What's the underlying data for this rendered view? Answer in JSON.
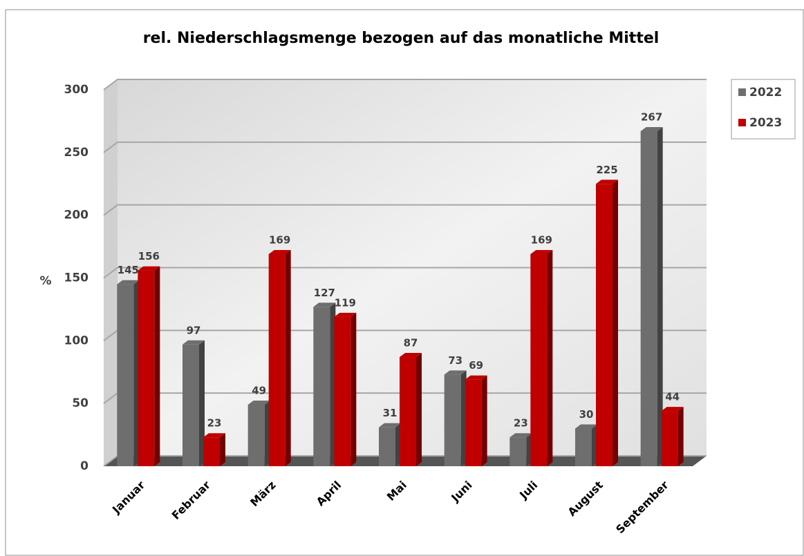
{
  "chart_data": {
    "type": "bar",
    "title": "rel. Niederschlagsmenge bezogen auf das monatliche Mittel",
    "y_label": "%",
    "categories": [
      "Januar",
      "Februar",
      "März",
      "April",
      "Mai",
      "Juni",
      "Juli",
      "August",
      "September"
    ],
    "series": [
      {
        "name": "2022",
        "color": "#6e6e6e",
        "values": [
          145,
          97,
          49,
          127,
          31,
          73,
          23,
          30,
          267
        ]
      },
      {
        "name": "2023",
        "color": "#c00000",
        "values": [
          156,
          23,
          169,
          119,
          87,
          69,
          169,
          225,
          44
        ]
      }
    ],
    "ylim": [
      0,
      300
    ],
    "yticks": [
      0,
      50,
      100,
      150,
      200,
      250,
      300
    ],
    "grid": true,
    "legend": "right"
  }
}
